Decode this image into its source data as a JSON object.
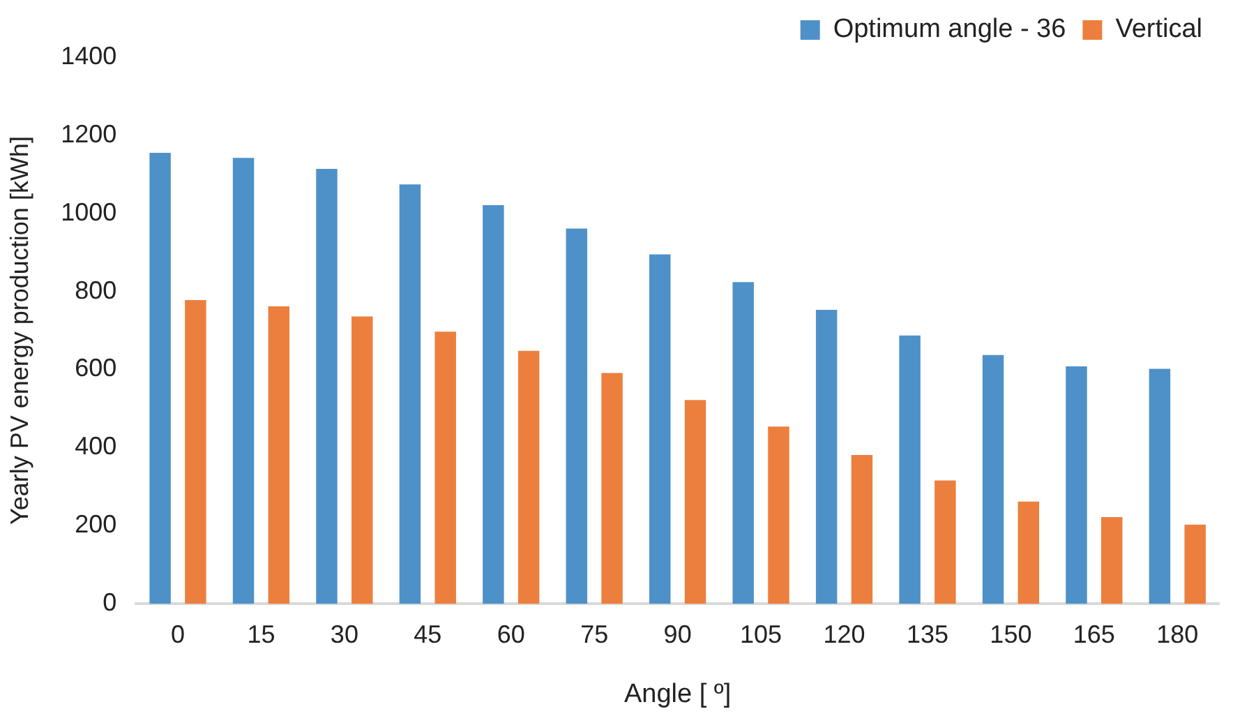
{
  "chart_data": {
    "type": "bar",
    "xlabel": "Angle [ º]",
    "ylabel": "Yearly PV energy production [kWh]",
    "categories": [
      "0",
      "15",
      "30",
      "45",
      "60",
      "75",
      "90",
      "105",
      "120",
      "135",
      "150",
      "165",
      "180"
    ],
    "series": [
      {
        "name": "Optimum angle - 36",
        "color": "#4e91c8",
        "values": [
          1155,
          1142,
          1114,
          1074,
          1021,
          961,
          895,
          824,
          753,
          687,
          637,
          608,
          602
        ]
      },
      {
        "name": "Vertical",
        "color": "#ec7f3d",
        "values": [
          778,
          762,
          736,
          697,
          648,
          591,
          522,
          454,
          381,
          316,
          262,
          222,
          203
        ]
      }
    ],
    "ylim": [
      0,
      1400
    ],
    "yticks": [
      0,
      200,
      400,
      600,
      800,
      1000,
      1200,
      1400
    ],
    "grid": false,
    "legend": "top right"
  }
}
